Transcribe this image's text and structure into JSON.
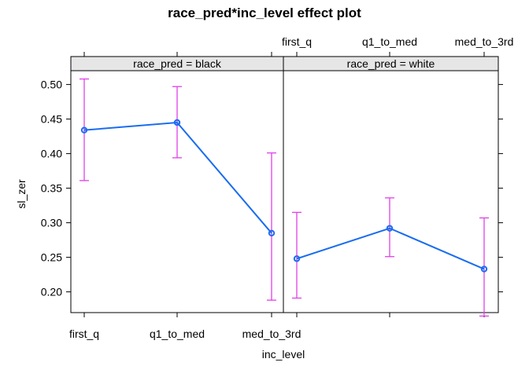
{
  "chart_data": {
    "type": "line",
    "title": "race_pred*inc_level effect plot",
    "xlabel": "inc_level",
    "ylabel": "sl_zer",
    "categories": [
      "first_q",
      "q1_to_med",
      "med_to_3rd"
    ],
    "yticks": [
      0.2,
      0.25,
      0.3,
      0.35,
      0.4,
      0.45,
      0.5
    ],
    "ytick_labels": [
      "0.20",
      "0.25",
      "0.30",
      "0.35",
      "0.40",
      "0.45",
      "0.50"
    ],
    "ylim": [
      0.17,
      0.52
    ],
    "line_color": "#1a6cf0",
    "ci_color": "#e040e8",
    "panels": [
      {
        "strip": "race_pred = black",
        "values": [
          0.434,
          0.445,
          0.285
        ],
        "lower": [
          0.361,
          0.394,
          0.188
        ],
        "upper": [
          0.508,
          0.497,
          0.401
        ]
      },
      {
        "strip": "race_pred = white",
        "values": [
          0.248,
          0.292,
          0.233
        ],
        "lower": [
          0.191,
          0.251,
          0.165
        ],
        "upper": [
          0.315,
          0.336,
          0.307
        ]
      }
    ]
  }
}
